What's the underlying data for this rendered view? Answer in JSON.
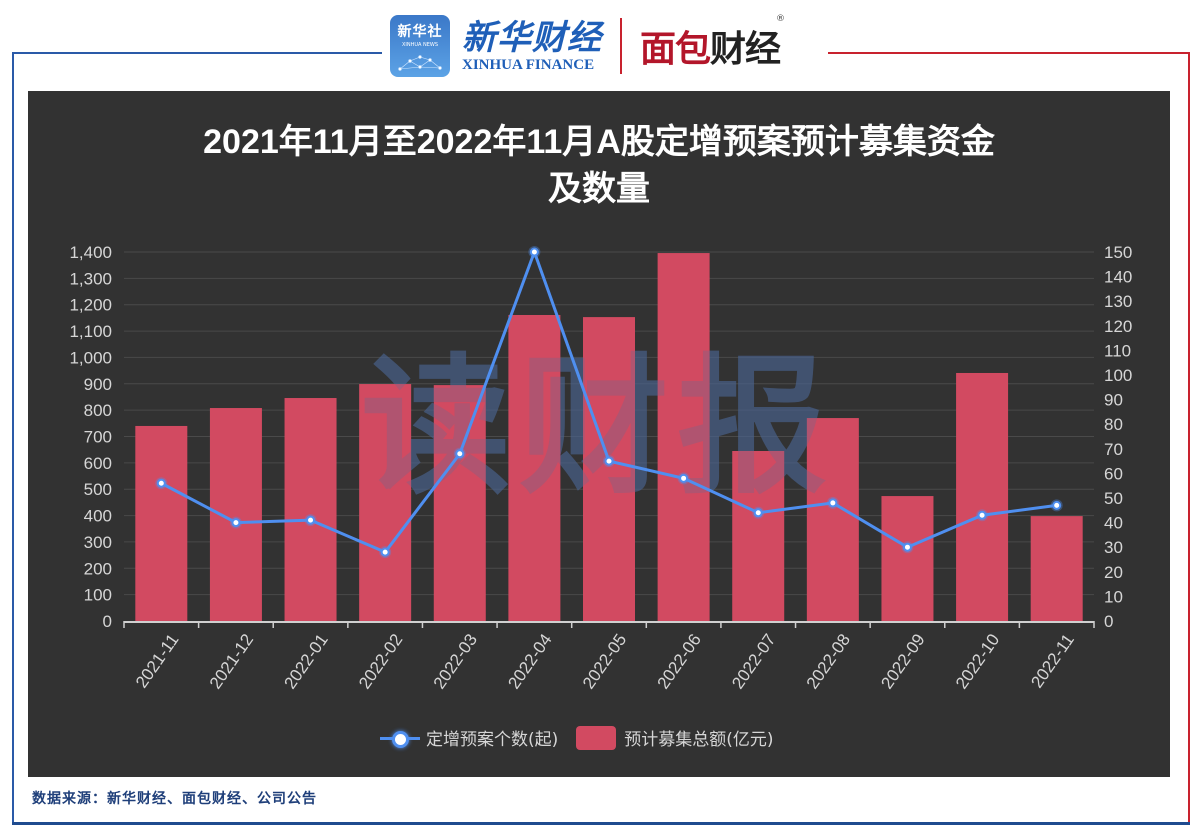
{
  "header": {
    "xinhua_news_icon_cn": "新华社",
    "xinhua_news_icon_en": "XINHUA NEWS",
    "xinhua_finance_cn": "新华财经",
    "xinhua_finance_en": "XINHUA FINANCE",
    "mianbao_part1": "面包",
    "mianbao_part2": "财经",
    "registered_mark": "®"
  },
  "watermark": "读财报",
  "footer": {
    "source": "数据来源：新华财经、面包财经、公司公告"
  },
  "colors": {
    "background": "#323232",
    "bar": "#d24a61",
    "line": "#4f8ff0",
    "frame_blue": "#2a5aa8",
    "frame_red": "#c8222e",
    "text": "#d6d6d6",
    "title": "#ffffff"
  },
  "chart_data": {
    "type": "bar",
    "title": "2021年11月至2022年11月A股定增预案预计募集资金及数量",
    "title_line1": "2021年11月至2022年11月A股定增预案预计募集资金",
    "title_line2": "及数量",
    "categories": [
      "2021-11",
      "2021-12",
      "2022-01",
      "2022-02",
      "2022-03",
      "2022-04",
      "2022-05",
      "2022-06",
      "2022-07",
      "2022-08",
      "2022-09",
      "2022-10",
      "2022-11"
    ],
    "series": [
      {
        "name": "预计募集总额(亿元)",
        "type": "bar",
        "axis": "left",
        "values": [
          740,
          808,
          846,
          899,
          895,
          1161,
          1153,
          1396,
          645,
          770,
          474,
          941,
          398
        ]
      },
      {
        "name": "定增预案个数(起)",
        "type": "line",
        "axis": "right",
        "values": [
          56,
          40,
          41,
          28,
          68,
          150,
          65,
          58,
          44,
          48,
          30,
          43,
          47
        ]
      }
    ],
    "xlabel": "",
    "ylabel_left": "",
    "ylabel_right": "",
    "ylim_left": [
      0,
      1400
    ],
    "ylim_right": [
      0,
      150
    ],
    "yticks_left": [
      "0",
      "100",
      "200",
      "300",
      "400",
      "500",
      "600",
      "700",
      "800",
      "900",
      "1,000",
      "1,100",
      "1,200",
      "1,300",
      "1,400"
    ],
    "yticks_right": [
      "0",
      "10",
      "20",
      "30",
      "40",
      "50",
      "60",
      "70",
      "80",
      "90",
      "100",
      "110",
      "120",
      "130",
      "140",
      "150"
    ],
    "grid": true,
    "legend_position": "bottom",
    "legend": [
      "定增预案个数(起)",
      "预计募集总额(亿元)"
    ]
  }
}
